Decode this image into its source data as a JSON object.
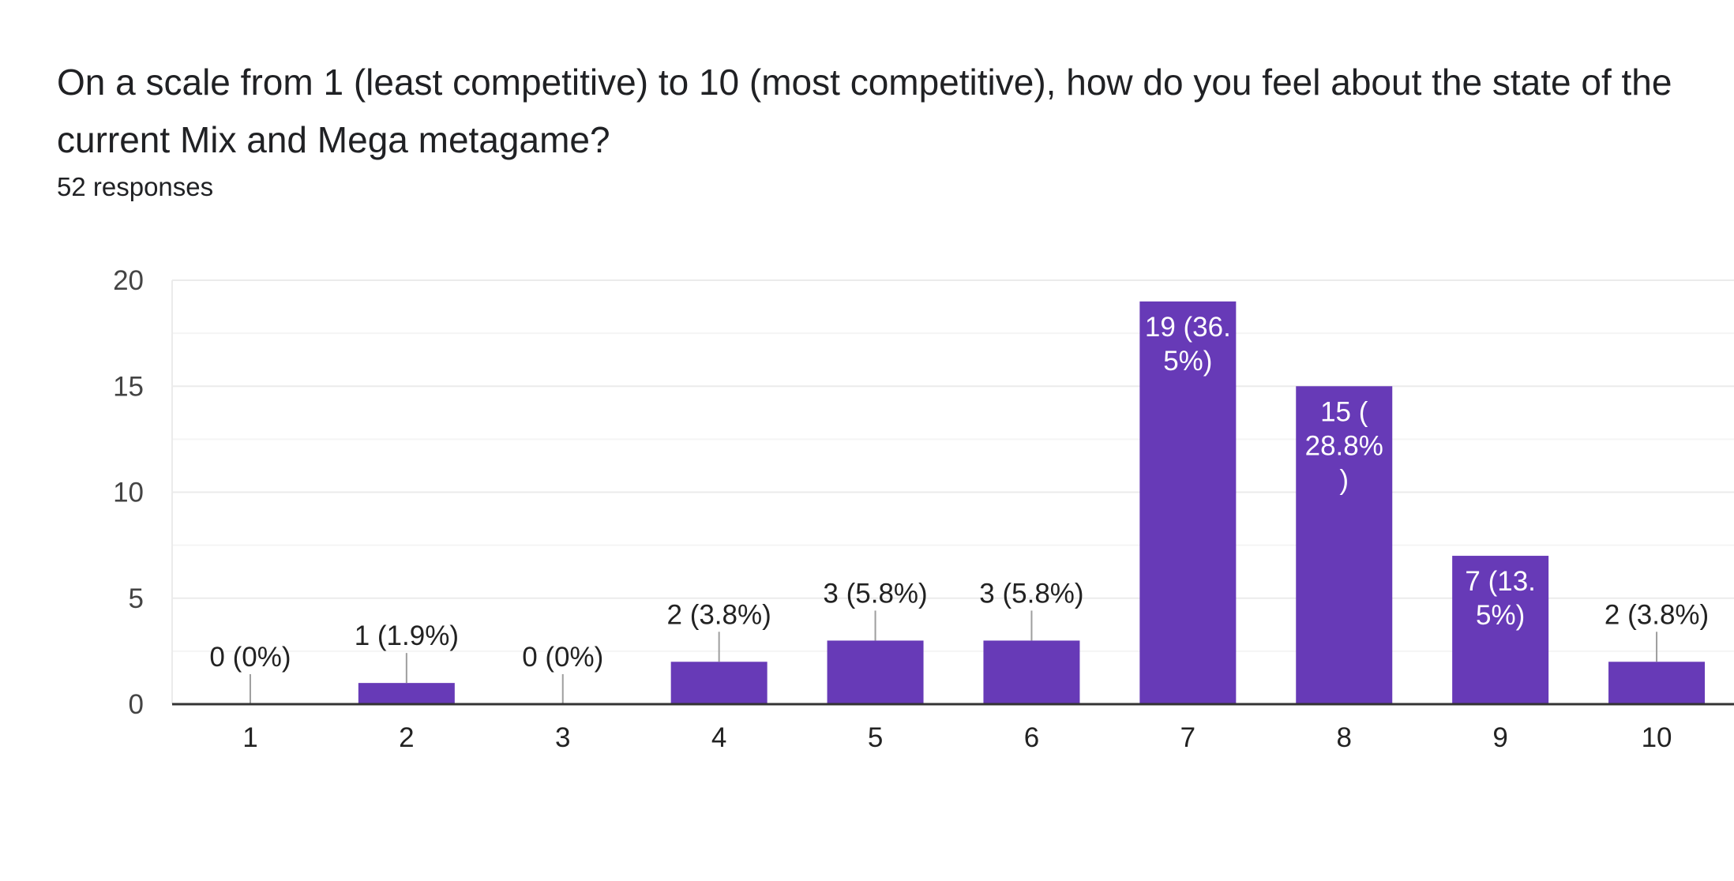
{
  "header": {
    "title": "On a scale from 1 (least competitive) to 10 (most competitive), how do you feel about the state of the current Mix and Mega metagame?",
    "responses": "52 responses"
  },
  "colors": {
    "bar": "#673ab7",
    "grid": "#ebebeb",
    "axis": "#333333",
    "leader": "#9e9e9e"
  },
  "chart_data": {
    "type": "bar",
    "title": "",
    "xlabel": "",
    "ylabel": "",
    "ylim": [
      0,
      20
    ],
    "yticks": [
      "0",
      "5",
      "10",
      "15",
      "20"
    ],
    "categories": [
      "1",
      "2",
      "3",
      "4",
      "5",
      "6",
      "7",
      "8",
      "9",
      "10"
    ],
    "values": [
      0,
      1,
      0,
      2,
      3,
      3,
      19,
      15,
      7,
      2
    ],
    "labels": [
      [
        "0 (0%)"
      ],
      [
        "1 (1.9%)"
      ],
      [
        "0 (0%)"
      ],
      [
        "2 (3.8%)"
      ],
      [
        "3 (5.8%)"
      ],
      [
        "3 (5.8%)"
      ],
      [
        "19 (36.",
        "5%)"
      ],
      [
        "15 (",
        "28.8%",
        ")"
      ],
      [
        "7 (13.",
        "5%)"
      ],
      [
        "2 (3.8%)"
      ]
    ],
    "label_inside": [
      false,
      false,
      false,
      false,
      false,
      false,
      true,
      true,
      true,
      false
    ],
    "grid": true,
    "legend": "none"
  }
}
